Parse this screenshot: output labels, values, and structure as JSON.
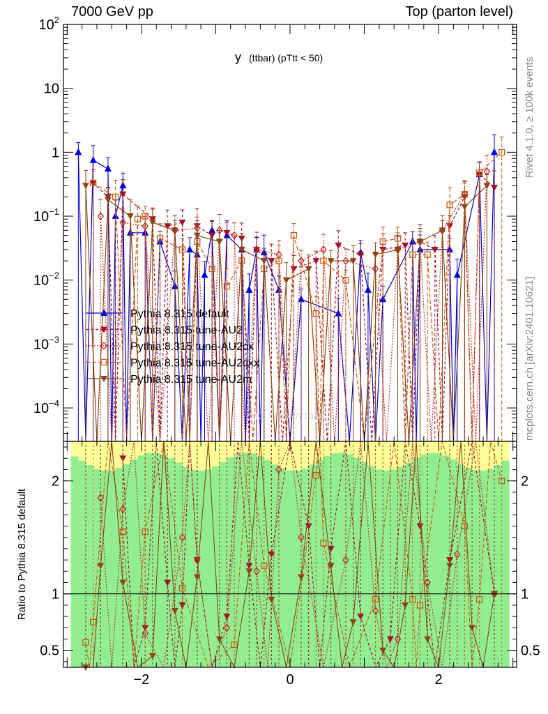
{
  "header": {
    "left": "7000 GeV pp",
    "right": "Top (parton level)"
  },
  "side_labels": {
    "rivet": "Rivet 4.1.0, ≥ 100k events",
    "mcplots": "mcplots.cern.ch [arXiv:2401.10621]"
  },
  "chart_data": {
    "type": "line",
    "title": "y (ttbar) (pTtt < 50)",
    "title_main": "y",
    "title_sub": "(ttbar)  (pTtt < 50)",
    "watermark": "MC_TTBAR/TTBAR",
    "xlabel": "",
    "ylabel": "",
    "xlim": [
      -3.05,
      3.05
    ],
    "ylim": [
      3e-05,
      100
    ],
    "yscale": "log",
    "x_ticks": [
      -2,
      0,
      2
    ],
    "x_tick_labels": [
      "−2",
      "0",
      "2"
    ],
    "y_ticks": [
      0.0001,
      0.001,
      0.01,
      0.1,
      1,
      10,
      100
    ],
    "y_tick_labels": [
      {
        "base": "10",
        "exp": "−4"
      },
      {
        "base": "10",
        "exp": "−3"
      },
      {
        "base": "10",
        "exp": "−2"
      },
      {
        "base": "10",
        "exp": "−1"
      },
      {
        "base": "1",
        "exp": ""
      },
      {
        "base": "10",
        "exp": ""
      },
      {
        "base": "10",
        "exp": "2"
      }
    ],
    "legend_position": "middle-left",
    "series": [
      {
        "name": "Pythia 8.315 default",
        "color": "#0000dd",
        "marker": "triangle-up",
        "dash": "",
        "points": [
          [
            -2.85,
            1.0
          ],
          [
            -2.65,
            0.75
          ],
          [
            -2.45,
            0.55
          ],
          [
            -2.35,
            0.1
          ],
          [
            -2.25,
            0.3
          ],
          [
            -2.15,
            0.055
          ],
          [
            -1.95,
            0.055
          ],
          [
            -1.75,
            0.04
          ],
          [
            -1.55,
            0.008
          ],
          [
            -1.35,
            0.03
          ],
          [
            -1.25,
            0.025
          ],
          [
            -1.15,
            0.012
          ],
          [
            -1.05,
            0.06
          ],
          [
            -0.85,
            0.05
          ],
          [
            -0.65,
            0.03
          ],
          [
            -0.55,
            0.007
          ],
          [
            -0.45,
            0.03
          ],
          [
            -0.35,
            0.027
          ],
          [
            -0.15,
            0.007
          ],
          [
            0.15,
            0.005
          ],
          [
            0.65,
            0.003
          ],
          [
            0.95,
            0.027
          ],
          [
            1.05,
            0.007
          ],
          [
            1.25,
            0.005
          ],
          [
            1.65,
            0.04
          ],
          [
            1.75,
            0.03
          ],
          [
            2.15,
            0.03
          ],
          [
            2.25,
            0.012
          ],
          [
            2.55,
            0.45
          ],
          [
            2.75,
            1.0
          ]
        ]
      },
      {
        "name": "Pythia 8.315 tune-AU2",
        "color": "#a0102a",
        "marker": "triangle-down",
        "dash": "4,3",
        "points": [
          [
            -2.65,
            0.33
          ],
          [
            -2.45,
            0.2
          ],
          [
            -2.25,
            0.22
          ],
          [
            -1.85,
            0.09
          ],
          [
            -1.65,
            0.07
          ],
          [
            -1.45,
            0.08
          ],
          [
            -1.25,
            0.07
          ],
          [
            -1.05,
            0.05
          ],
          [
            -0.85,
            0.055
          ],
          [
            -0.65,
            0.045
          ],
          [
            -0.45,
            0.03
          ],
          [
            -0.25,
            0.02
          ],
          [
            0.05,
            0.015
          ],
          [
            0.35,
            0.02
          ],
          [
            0.65,
            0.035
          ],
          [
            0.95,
            0.025
          ],
          [
            1.25,
            0.03
          ],
          [
            1.55,
            0.035
          ],
          [
            1.75,
            0.04
          ],
          [
            1.95,
            0.03
          ],
          [
            2.15,
            0.07
          ],
          [
            2.35,
            0.2
          ],
          [
            2.55,
            0.45
          ],
          [
            2.75,
            0.28
          ]
        ]
      },
      {
        "name": "Pythia 8.315 tune-AU2cx",
        "color": "#c02828",
        "marker": "diamond",
        "dash": "2,2",
        "points": [
          [
            -2.55,
            0.1
          ],
          [
            -2.25,
            0.08
          ],
          [
            -1.95,
            0.07
          ],
          [
            -1.55,
            0.06
          ],
          [
            -1.25,
            0.065
          ],
          [
            -0.95,
            0.06
          ],
          [
            -0.75,
            0.05
          ],
          [
            -0.45,
            0.03
          ],
          [
            -0.15,
            0.025
          ],
          [
            0.15,
            0.02
          ],
          [
            0.45,
            0.03
          ],
          [
            0.75,
            0.02
          ],
          [
            1.15,
            0.015
          ],
          [
            1.45,
            0.03
          ],
          [
            1.75,
            0.04
          ],
          [
            2.05,
            0.06
          ],
          [
            2.35,
            0.22
          ],
          [
            2.65,
            0.5
          ]
        ]
      },
      {
        "name": "Pythia 8.315 tune-AU2cxx",
        "color": "#c85a14",
        "marker": "square-open",
        "dash": "6,3",
        "points": [
          [
            -2.65,
            0.33
          ],
          [
            -2.35,
            0.2
          ],
          [
            -2.05,
            0.09
          ],
          [
            -1.95,
            0.1
          ],
          [
            -1.75,
            0.045
          ],
          [
            -1.45,
            0.03
          ],
          [
            -1.25,
            0.04
          ],
          [
            -1.05,
            0.015
          ],
          [
            -0.85,
            0.008
          ],
          [
            -0.65,
            0.02
          ],
          [
            -0.35,
            0.015
          ],
          [
            -0.15,
            0.02
          ],
          [
            0.05,
            0.05
          ],
          [
            0.35,
            0.003
          ],
          [
            0.45,
            0.02
          ],
          [
            0.75,
            0.01
          ],
          [
            1.25,
            0.04
          ],
          [
            1.45,
            0.045
          ],
          [
            1.65,
            0.025
          ],
          [
            1.85,
            0.025
          ],
          [
            2.15,
            0.15
          ],
          [
            2.35,
            0.22
          ],
          [
            2.55,
            0.48
          ],
          [
            2.85,
            1.0
          ]
        ]
      },
      {
        "name": "Pythia 8.315 tune-AU2m",
        "color": "#8b4513",
        "marker": "triangle-down",
        "dash": "",
        "points": [
          [
            -2.75,
            0.3
          ],
          [
            -2.45,
            0.18
          ],
          [
            -2.15,
            0.1
          ],
          [
            -1.85,
            0.08
          ],
          [
            -1.55,
            0.06
          ],
          [
            -1.25,
            0.05
          ],
          [
            -0.95,
            0.04
          ],
          [
            -0.65,
            0.03
          ],
          [
            -0.35,
            0.02
          ],
          [
            -0.05,
            0.01
          ],
          [
            0.25,
            0.015
          ],
          [
            0.55,
            0.02
          ],
          [
            0.85,
            0.02
          ],
          [
            1.15,
            0.025
          ],
          [
            1.45,
            0.03
          ],
          [
            1.75,
            0.04
          ],
          [
            2.05,
            0.06
          ],
          [
            2.35,
            0.14
          ],
          [
            2.65,
            0.3
          ]
        ]
      }
    ],
    "ratio": {
      "ylabel": "Ratio to Pythia 8.315 default",
      "ylim": [
        0.35,
        2.35
      ],
      "y_ticks": [
        0.5,
        1,
        2
      ],
      "y_tick_labels": [
        "0.5",
        "1",
        "2"
      ],
      "reference": 1,
      "band_color_inner": "#90ee90",
      "band_color_outer": "#ffff99",
      "series": [
        {
          "name": "Pythia 8.315 tune-AU2",
          "points": [
            [
              -2.25,
              2.2
            ],
            [
              -1.95,
              0.7
            ],
            [
              -1.65,
              1.1
            ],
            [
              -1.45,
              0.9
            ],
            [
              -1.25,
              1.3
            ],
            [
              -0.85,
              0.8
            ],
            [
              -0.55,
              1.25
            ],
            [
              -0.25,
              1.35
            ],
            [
              0.25,
              1.6
            ],
            [
              0.55,
              1.4
            ],
            [
              0.95,
              0.8
            ],
            [
              1.35,
              0.6
            ],
            [
              1.75,
              1.6
            ],
            [
              2.15,
              1.3
            ],
            [
              2.75,
              1.0
            ]
          ]
        },
        {
          "name": "Pythia 8.315 tune-AU2cx",
          "points": [
            [
              -2.55,
              1.85
            ],
            [
              -2.25,
              1.75
            ],
            [
              -1.95,
              0.65
            ],
            [
              -1.45,
              1.5
            ],
            [
              -1.25,
              1.3
            ],
            [
              -0.85,
              0.7
            ],
            [
              -0.45,
              1.2
            ],
            [
              -0.15,
              2.1
            ],
            [
              0.15,
              1.5
            ],
            [
              0.75,
              1.3
            ],
            [
              1.15,
              0.85
            ],
            [
              1.45,
              0.6
            ],
            [
              1.85,
              1.1
            ],
            [
              2.25,
              1.35
            ],
            [
              2.75,
              1.0
            ]
          ]
        },
        {
          "name": "Pythia 8.315 tune-AU2cxx",
          "points": [
            [
              -2.75,
              0.57
            ],
            [
              -2.65,
              0.75
            ],
            [
              -2.25,
              1.55
            ],
            [
              -1.95,
              1.55
            ],
            [
              -1.45,
              1.05
            ],
            [
              -0.75,
              0.55
            ],
            [
              -0.35,
              1.25
            ],
            [
              0.35,
              2.05
            ],
            [
              0.45,
              1.45
            ],
            [
              1.15,
              0.95
            ],
            [
              1.65,
              0.95
            ],
            [
              1.75,
              0.9
            ],
            [
              2.35,
              1.6
            ],
            [
              2.55,
              0.95
            ],
            [
              2.85,
              2.0
            ]
          ]
        },
        {
          "name": "Pythia 8.315 tune-AU2m",
          "points": [
            [
              -2.75,
              0.35
            ],
            [
              -2.55,
              1.25
            ],
            [
              -2.25,
              1.1
            ],
            [
              -1.85,
              0.45
            ],
            [
              -1.55,
              0.85
            ],
            [
              -1.25,
              1.15
            ],
            [
              -0.95,
              0.6
            ],
            [
              -0.55,
              1.2
            ],
            [
              -0.25,
              0.95
            ],
            [
              0.15,
              1.15
            ],
            [
              0.55,
              1.25
            ],
            [
              0.85,
              0.75
            ],
            [
              1.25,
              0.5
            ],
            [
              1.55,
              0.9
            ],
            [
              1.85,
              0.6
            ],
            [
              2.15,
              1.25
            ],
            [
              2.45,
              0.7
            ],
            [
              2.75,
              1.0
            ]
          ]
        }
      ]
    }
  }
}
